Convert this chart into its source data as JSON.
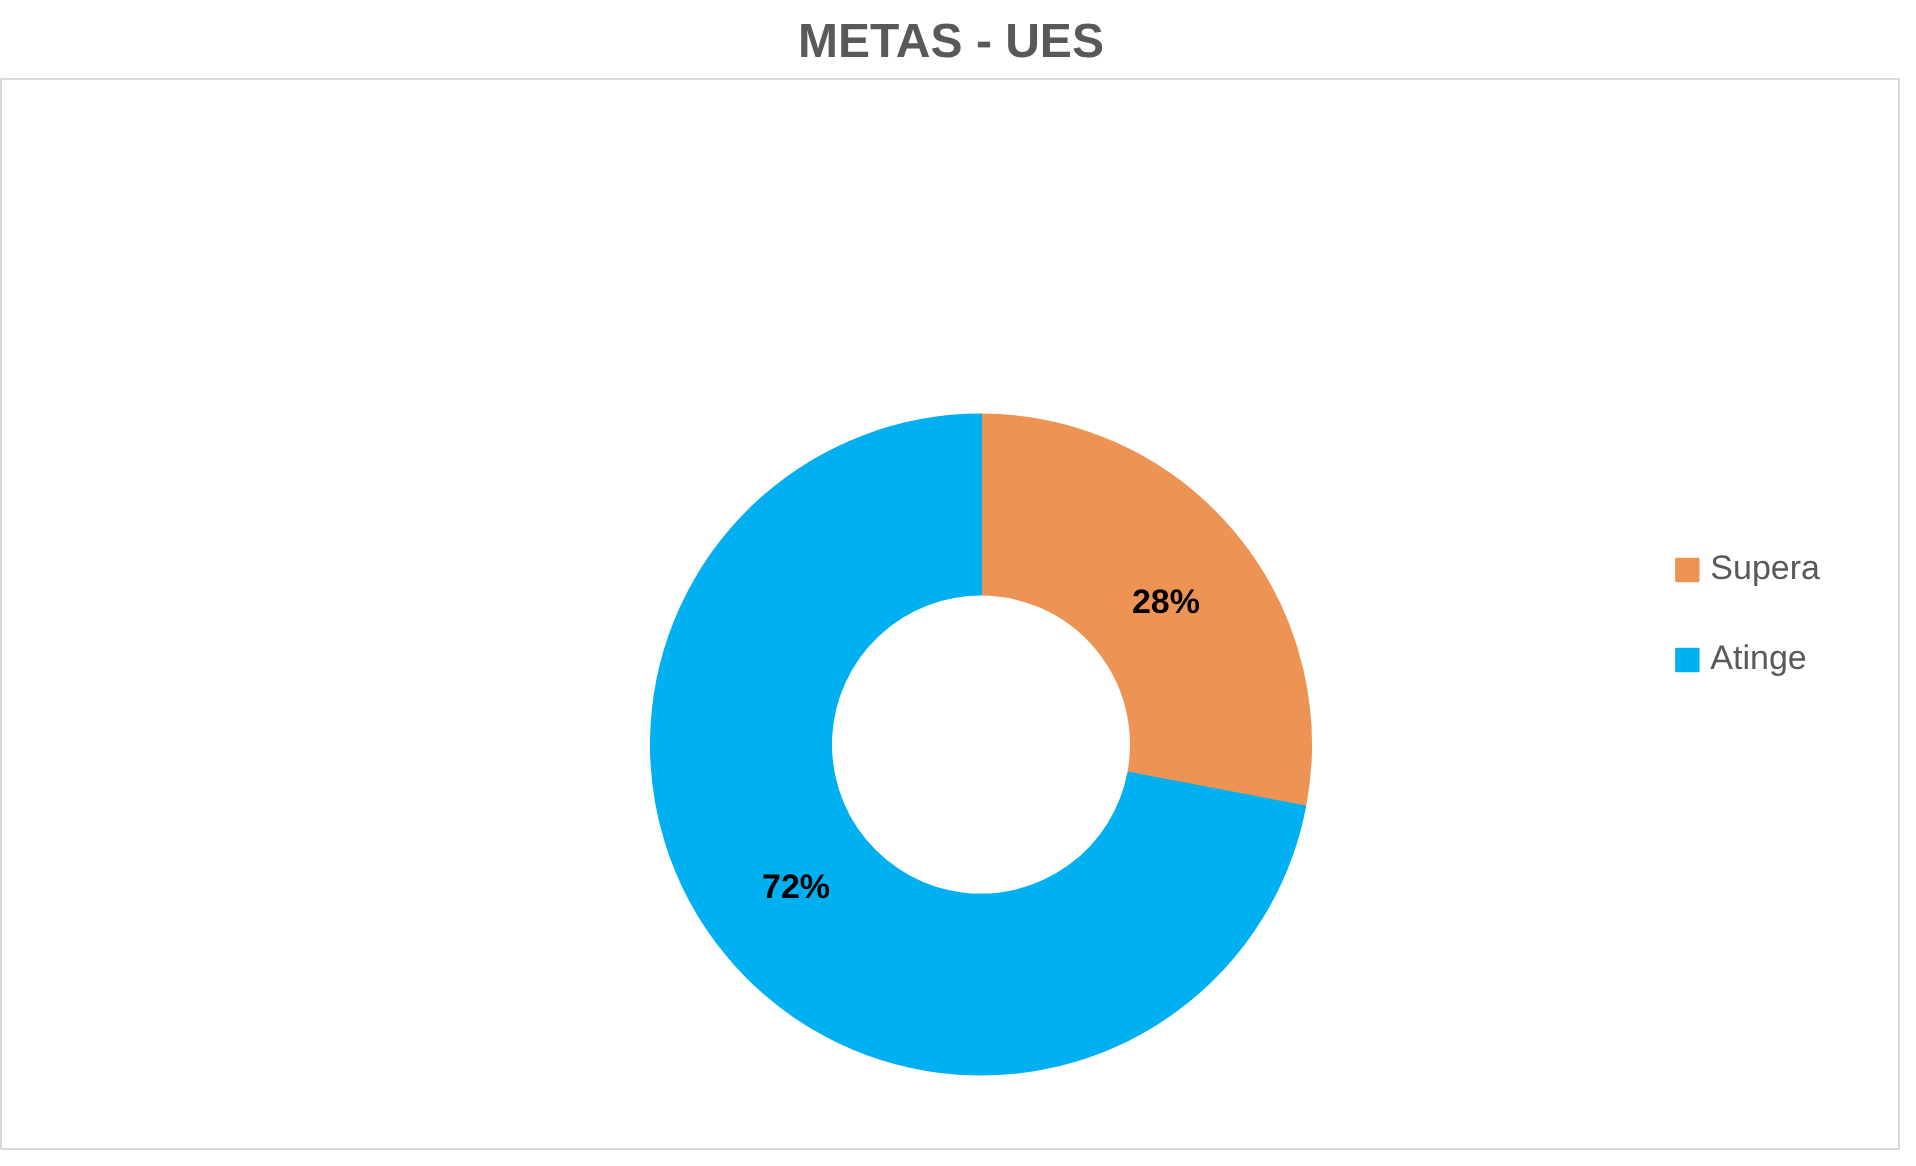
{
  "chart_data": {
    "type": "donut",
    "title": "METAS - UES",
    "categories": [
      "Supera",
      "Atinge"
    ],
    "values": [
      28,
      72
    ],
    "colors": [
      "#ed9455",
      "#00b0f0"
    ],
    "value_labels": [
      "28%",
      "72%"
    ],
    "legend": "right"
  }
}
